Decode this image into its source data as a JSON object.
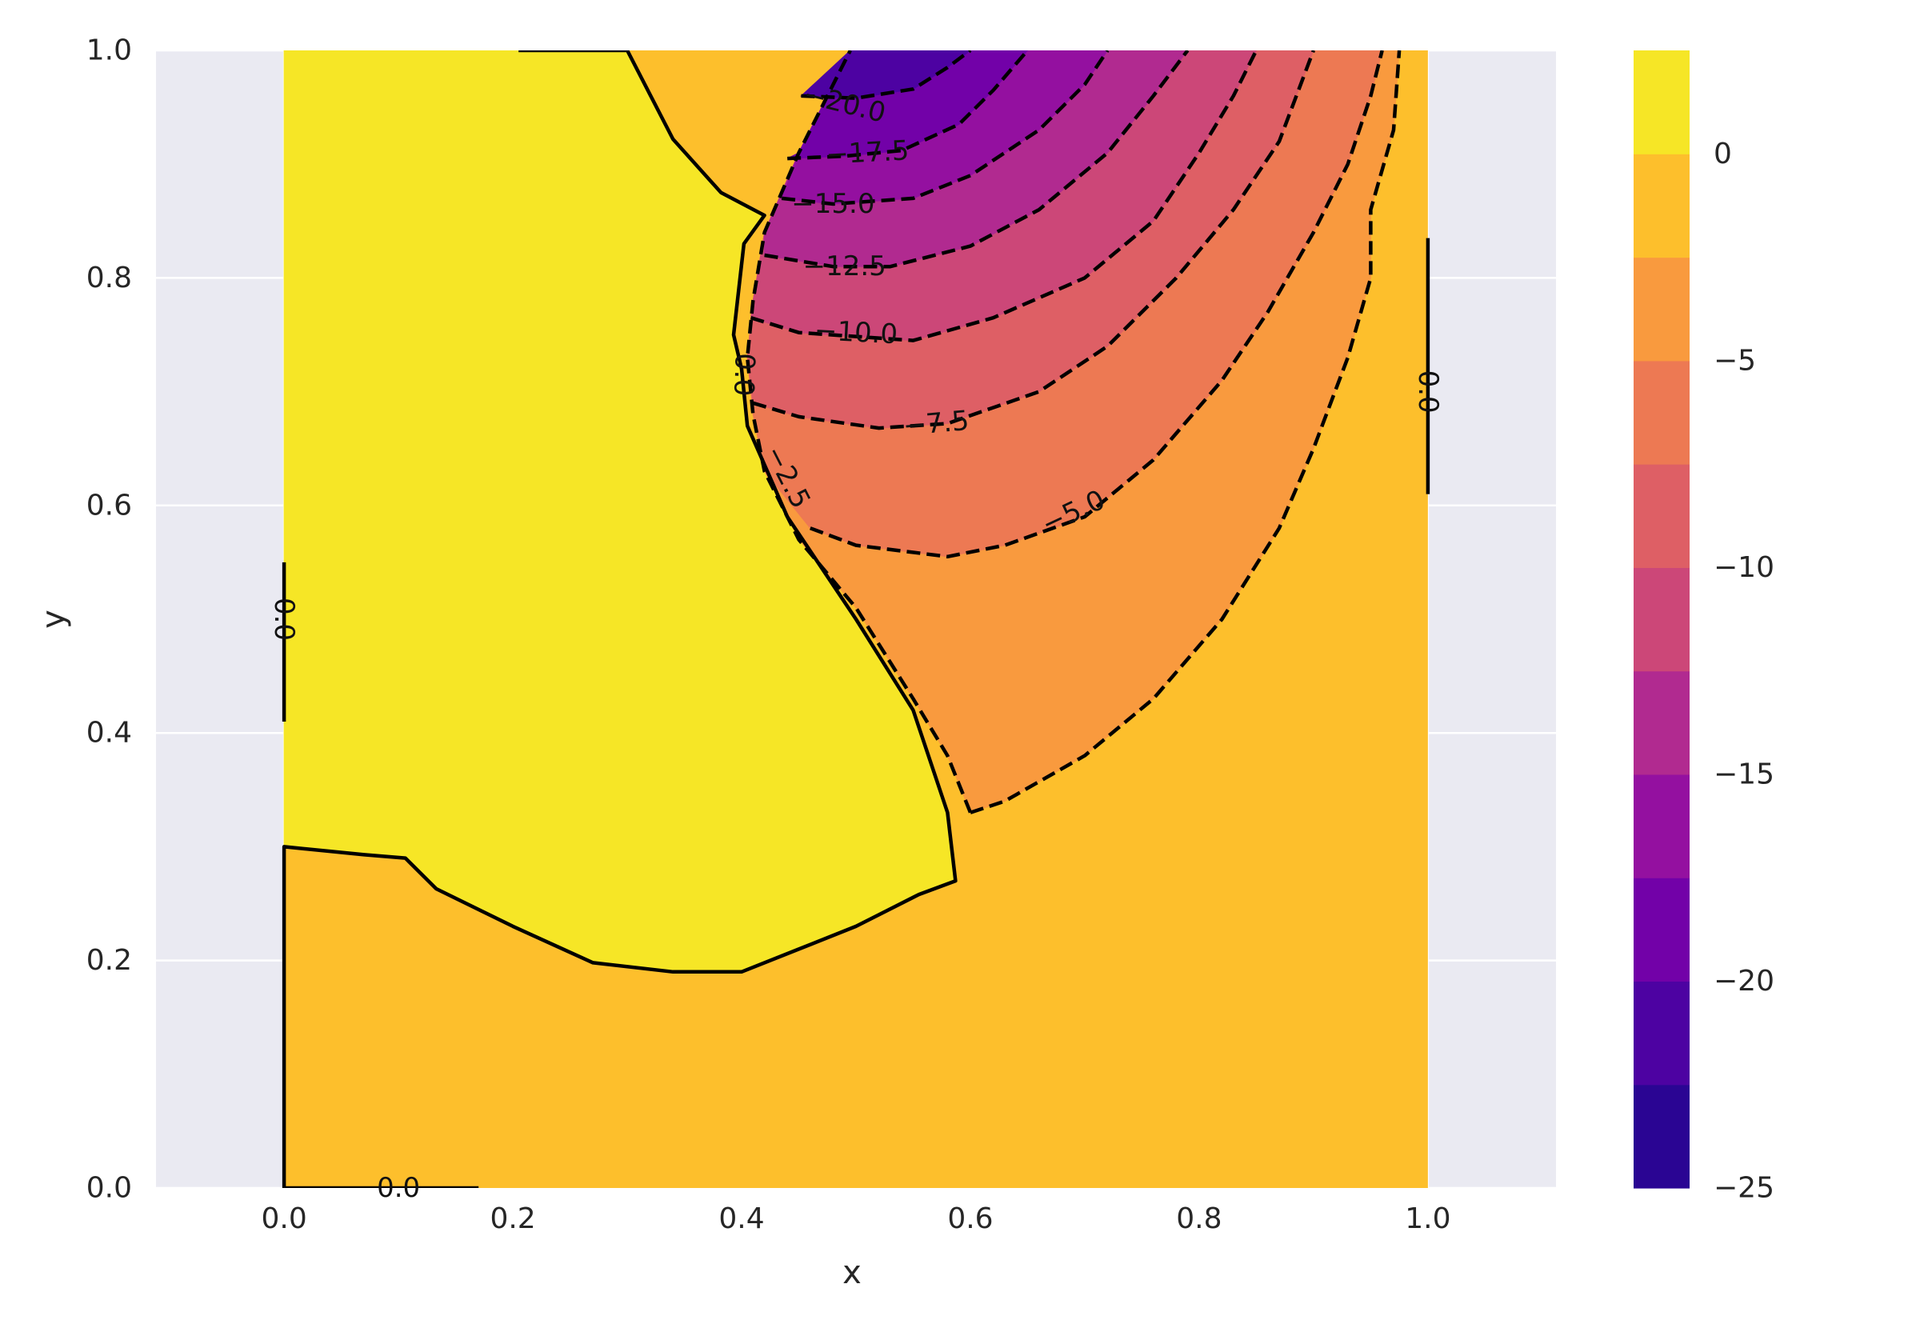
{
  "chart_data": {
    "type": "contour",
    "title": "",
    "xlabel": "x",
    "ylabel": "y",
    "xlim": [
      -0.112,
      1.112
    ],
    "ylim": [
      0.0,
      1.0
    ],
    "grid": true,
    "x_ticks": [
      0.0,
      0.2,
      0.4,
      0.6,
      0.8,
      1.0
    ],
    "x_tick_labels": [
      "0.0",
      "0.2",
      "0.4",
      "0.6",
      "0.8",
      "1.0"
    ],
    "y_ticks": [
      0.0,
      0.2,
      0.4,
      0.6,
      0.8,
      1.0
    ],
    "y_tick_labels": [
      "0.0",
      "0.2",
      "0.4",
      "0.6",
      "0.8",
      "1.0"
    ],
    "colormap": "plasma",
    "filled_levels": [
      -25,
      -22.5,
      -20,
      -17.5,
      -15,
      -12.5,
      -10,
      -7.5,
      -5,
      -2.5,
      0,
      2.5
    ],
    "level_colors": [
      "#2a0593",
      "#4d02a2",
      "#7201a8",
      "#9410a0",
      "#b12a90",
      "#cc4778",
      "#de5f65",
      "#ed7953",
      "#f99a3e",
      "#fdbf2c",
      "#f6e626"
    ],
    "colorbar": {
      "ticks": [
        0,
        -5,
        -10,
        -15,
        -20,
        -25
      ],
      "tick_labels": [
        "0",
        "−5",
        "−10",
        "−15",
        "−20",
        "−25"
      ],
      "range": [
        -25,
        2.5
      ]
    },
    "contour_lines": [
      {
        "level": 0.0,
        "style": "solid",
        "points": [
          [
            0.0,
            0.0
          ],
          [
            0.0,
            0.3
          ],
          [
            0.07,
            0.293
          ],
          [
            0.106,
            0.29
          ],
          [
            0.133,
            0.263
          ],
          [
            0.2,
            0.23
          ],
          [
            0.27,
            0.198
          ],
          [
            0.34,
            0.19
          ],
          [
            0.4,
            0.19
          ],
          [
            0.45,
            0.21
          ],
          [
            0.5,
            0.23
          ],
          [
            0.555,
            0.258
          ],
          [
            0.587,
            0.27
          ],
          [
            0.58,
            0.33
          ],
          [
            0.55,
            0.42
          ],
          [
            0.5,
            0.5
          ],
          [
            0.44,
            0.59
          ],
          [
            0.405,
            0.67
          ],
          [
            0.4,
            0.72
          ],
          [
            0.393,
            0.75
          ],
          [
            0.402,
            0.83
          ],
          [
            0.42,
            0.855
          ],
          [
            0.382,
            0.875
          ],
          [
            0.34,
            0.922
          ],
          [
            0.3,
            1.0
          ]
        ]
      },
      {
        "level": 0.0,
        "style": "solid",
        "points": [
          [
            0.205,
            1.0
          ],
          [
            0.3,
            1.0
          ]
        ]
      },
      {
        "level": 0.0,
        "style": "solid",
        "points": [
          [
            1.0,
            0.61
          ],
          [
            1.0,
            0.835
          ]
        ]
      },
      {
        "level": 0.0,
        "style": "solid",
        "points": [
          [
            0.0,
            0.41
          ],
          [
            0.0,
            0.55
          ]
        ]
      },
      {
        "level": 0.0,
        "style": "solid",
        "points": [
          [
            0.0,
            0.0
          ],
          [
            0.17,
            0.0
          ]
        ]
      },
      {
        "level": -2.5,
        "style": "dashed",
        "points": [
          [
            0.6,
            0.33
          ],
          [
            0.63,
            0.34
          ],
          [
            0.7,
            0.38
          ],
          [
            0.76,
            0.43
          ],
          [
            0.82,
            0.5
          ],
          [
            0.87,
            0.58
          ],
          [
            0.9,
            0.65
          ],
          [
            0.93,
            0.73
          ],
          [
            0.95,
            0.8
          ],
          [
            0.95,
            0.86
          ],
          [
            0.97,
            0.93
          ],
          [
            0.975,
            1.0
          ]
        ]
      },
      {
        "level": -2.5,
        "style": "dashed",
        "points": [
          [
            0.6,
            0.33
          ],
          [
            0.58,
            0.38
          ],
          [
            0.55,
            0.43
          ],
          [
            0.5,
            0.51
          ],
          [
            0.45,
            0.57
          ],
          [
            0.42,
            0.63
          ],
          [
            0.41,
            0.68
          ],
          [
            0.405,
            0.73
          ],
          [
            0.41,
            0.78
          ],
          [
            0.42,
            0.84
          ],
          [
            0.45,
            0.91
          ],
          [
            0.495,
            1.0
          ]
        ]
      },
      {
        "level": -5.0,
        "style": "dashed",
        "points": [
          [
            0.46,
            0.58
          ],
          [
            0.5,
            0.565
          ],
          [
            0.58,
            0.555
          ],
          [
            0.63,
            0.565
          ],
          [
            0.7,
            0.59
          ],
          [
            0.76,
            0.64
          ],
          [
            0.82,
            0.71
          ],
          [
            0.86,
            0.77
          ],
          [
            0.9,
            0.84
          ],
          [
            0.93,
            0.9
          ],
          [
            0.95,
            0.96
          ],
          [
            0.96,
            1.0
          ]
        ]
      },
      {
        "level": -7.5,
        "style": "dashed",
        "points": [
          [
            0.41,
            0.69
          ],
          [
            0.45,
            0.678
          ],
          [
            0.52,
            0.668
          ],
          [
            0.58,
            0.672
          ],
          [
            0.66,
            0.7
          ],
          [
            0.72,
            0.74
          ],
          [
            0.78,
            0.8
          ],
          [
            0.83,
            0.86
          ],
          [
            0.87,
            0.92
          ],
          [
            0.9,
            1.0
          ]
        ]
      },
      {
        "level": -10.0,
        "style": "dashed",
        "points": [
          [
            0.408,
            0.765
          ],
          [
            0.45,
            0.752
          ],
          [
            0.55,
            0.745
          ],
          [
            0.62,
            0.765
          ],
          [
            0.7,
            0.8
          ],
          [
            0.76,
            0.85
          ],
          [
            0.8,
            0.91
          ],
          [
            0.83,
            0.96
          ],
          [
            0.85,
            1.0
          ]
        ]
      },
      {
        "level": -12.5,
        "style": "dashed",
        "points": [
          [
            0.42,
            0.82
          ],
          [
            0.48,
            0.81
          ],
          [
            0.53,
            0.81
          ],
          [
            0.6,
            0.828
          ],
          [
            0.66,
            0.86
          ],
          [
            0.72,
            0.91
          ],
          [
            0.76,
            0.96
          ],
          [
            0.79,
            1.0
          ]
        ]
      },
      {
        "level": -15.0,
        "style": "dashed",
        "points": [
          [
            0.435,
            0.87
          ],
          [
            0.48,
            0.865
          ],
          [
            0.55,
            0.87
          ],
          [
            0.6,
            0.89
          ],
          [
            0.66,
            0.93
          ],
          [
            0.7,
            0.97
          ],
          [
            0.72,
            1.0
          ]
        ]
      },
      {
        "level": -17.5,
        "style": "dashed",
        "points": [
          [
            0.44,
            0.905
          ],
          [
            0.49,
            0.907
          ],
          [
            0.54,
            0.912
          ],
          [
            0.59,
            0.935
          ],
          [
            0.62,
            0.965
          ],
          [
            0.65,
            1.0
          ]
        ]
      },
      {
        "level": -20.0,
        "style": "dashed",
        "points": [
          [
            0.452,
            0.96
          ],
          [
            0.5,
            0.958
          ],
          [
            0.55,
            0.966
          ],
          [
            0.58,
            0.985
          ],
          [
            0.6,
            1.0
          ]
        ]
      }
    ],
    "filled_regions": [
      {
        "level_range": [
          0.0,
          2.5
        ],
        "color": "#f6e626",
        "points": [
          [
            0.0,
            0.3
          ],
          [
            0.07,
            0.293
          ],
          [
            0.106,
            0.29
          ],
          [
            0.133,
            0.263
          ],
          [
            0.2,
            0.23
          ],
          [
            0.27,
            0.198
          ],
          [
            0.34,
            0.19
          ],
          [
            0.4,
            0.19
          ],
          [
            0.45,
            0.21
          ],
          [
            0.5,
            0.23
          ],
          [
            0.555,
            0.258
          ],
          [
            0.587,
            0.27
          ],
          [
            0.58,
            0.33
          ],
          [
            0.55,
            0.42
          ],
          [
            0.5,
            0.5
          ],
          [
            0.44,
            0.59
          ],
          [
            0.405,
            0.67
          ],
          [
            0.4,
            0.72
          ],
          [
            0.393,
            0.75
          ],
          [
            0.402,
            0.83
          ],
          [
            0.42,
            0.855
          ],
          [
            0.382,
            0.875
          ],
          [
            0.34,
            0.922
          ],
          [
            0.3,
            1.0
          ],
          [
            0.0,
            1.0
          ]
        ]
      },
      {
        "level_range": [
          -5.0,
          -2.5
        ],
        "color": "#f99a3e",
        "points": [
          [
            0.6,
            0.33
          ],
          [
            0.63,
            0.34
          ],
          [
            0.7,
            0.38
          ],
          [
            0.76,
            0.43
          ],
          [
            0.82,
            0.5
          ],
          [
            0.87,
            0.58
          ],
          [
            0.9,
            0.65
          ],
          [
            0.93,
            0.73
          ],
          [
            0.95,
            0.8
          ],
          [
            0.95,
            0.86
          ],
          [
            0.97,
            0.93
          ],
          [
            0.975,
            1.0
          ],
          [
            0.495,
            1.0
          ],
          [
            0.45,
            0.91
          ],
          [
            0.42,
            0.84
          ],
          [
            0.41,
            0.78
          ],
          [
            0.405,
            0.73
          ],
          [
            0.41,
            0.68
          ],
          [
            0.42,
            0.63
          ],
          [
            0.45,
            0.57
          ],
          [
            0.5,
            0.51
          ],
          [
            0.55,
            0.43
          ],
          [
            0.58,
            0.38
          ]
        ]
      },
      {
        "level_range": [
          -7.5,
          -5.0
        ],
        "color": "#ed7953",
        "points": [
          [
            0.46,
            0.58
          ],
          [
            0.5,
            0.565
          ],
          [
            0.58,
            0.555
          ],
          [
            0.63,
            0.565
          ],
          [
            0.7,
            0.59
          ],
          [
            0.76,
            0.64
          ],
          [
            0.82,
            0.71
          ],
          [
            0.86,
            0.77
          ],
          [
            0.9,
            0.84
          ],
          [
            0.93,
            0.9
          ],
          [
            0.95,
            0.96
          ],
          [
            0.96,
            1.0
          ],
          [
            0.495,
            1.0
          ],
          [
            0.45,
            0.91
          ],
          [
            0.42,
            0.84
          ],
          [
            0.41,
            0.78
          ],
          [
            0.405,
            0.73
          ],
          [
            0.41,
            0.68
          ],
          [
            0.42,
            0.63
          ]
        ]
      },
      {
        "level_range": [
          -10.0,
          -7.5
        ],
        "color": "#de5f65",
        "points": [
          [
            0.41,
            0.69
          ],
          [
            0.45,
            0.678
          ],
          [
            0.52,
            0.668
          ],
          [
            0.58,
            0.672
          ],
          [
            0.66,
            0.7
          ],
          [
            0.72,
            0.74
          ],
          [
            0.78,
            0.8
          ],
          [
            0.83,
            0.86
          ],
          [
            0.87,
            0.92
          ],
          [
            0.9,
            1.0
          ],
          [
            0.495,
            1.0
          ],
          [
            0.45,
            0.91
          ],
          [
            0.42,
            0.84
          ],
          [
            0.41,
            0.78
          ],
          [
            0.405,
            0.73
          ]
        ]
      },
      {
        "level_range": [
          -12.5,
          -10.0
        ],
        "color": "#cc4778",
        "points": [
          [
            0.408,
            0.765
          ],
          [
            0.45,
            0.752
          ],
          [
            0.55,
            0.745
          ],
          [
            0.62,
            0.765
          ],
          [
            0.7,
            0.8
          ],
          [
            0.76,
            0.85
          ],
          [
            0.8,
            0.91
          ],
          [
            0.83,
            0.96
          ],
          [
            0.85,
            1.0
          ],
          [
            0.495,
            1.0
          ],
          [
            0.45,
            0.91
          ],
          [
            0.42,
            0.84
          ],
          [
            0.41,
            0.78
          ]
        ]
      },
      {
        "level_range": [
          -15.0,
          -12.5
        ],
        "color": "#b12a90",
        "points": [
          [
            0.42,
            0.82
          ],
          [
            0.48,
            0.81
          ],
          [
            0.53,
            0.81
          ],
          [
            0.6,
            0.828
          ],
          [
            0.66,
            0.86
          ],
          [
            0.72,
            0.91
          ],
          [
            0.76,
            0.96
          ],
          [
            0.79,
            1.0
          ],
          [
            0.495,
            1.0
          ],
          [
            0.45,
            0.91
          ],
          [
            0.42,
            0.84
          ]
        ]
      },
      {
        "level_range": [
          -17.5,
          -15.0
        ],
        "color": "#9410a0",
        "points": [
          [
            0.435,
            0.87
          ],
          [
            0.48,
            0.865
          ],
          [
            0.55,
            0.87
          ],
          [
            0.6,
            0.89
          ],
          [
            0.66,
            0.93
          ],
          [
            0.7,
            0.97
          ],
          [
            0.72,
            1.0
          ],
          [
            0.495,
            1.0
          ],
          [
            0.45,
            0.91
          ]
        ]
      },
      {
        "level_range": [
          -20.0,
          -17.5
        ],
        "color": "#7201a8",
        "points": [
          [
            0.44,
            0.905
          ],
          [
            0.49,
            0.907
          ],
          [
            0.54,
            0.912
          ],
          [
            0.59,
            0.935
          ],
          [
            0.62,
            0.965
          ],
          [
            0.65,
            1.0
          ],
          [
            0.495,
            1.0
          ],
          [
            0.45,
            0.91
          ]
        ]
      },
      {
        "level_range": [
          -22.5,
          -20.0
        ],
        "color": "#4d02a2",
        "points": [
          [
            0.452,
            0.96
          ],
          [
            0.5,
            0.958
          ],
          [
            0.55,
            0.966
          ],
          [
            0.58,
            0.985
          ],
          [
            0.6,
            1.0
          ],
          [
            0.495,
            1.0
          ]
        ]
      }
    ],
    "contour_labels": [
      {
        "text": "0.0",
        "x": 0.1,
        "y": 0.0,
        "rotation": 0
      },
      {
        "text": "0.0",
        "x": 0.0,
        "y": 0.5,
        "rotation": 90
      },
      {
        "text": "0.0",
        "x": 1.0,
        "y": 0.7,
        "rotation": 90
      },
      {
        "text": "0.0",
        "x": 0.402,
        "y": 0.715,
        "rotation": 92
      },
      {
        "text": "−2.5",
        "x": 0.44,
        "y": 0.625,
        "rotation": 63
      },
      {
        "text": "−5.0",
        "x": 0.69,
        "y": 0.594,
        "rotation": -25
      },
      {
        "text": "−7.5",
        "x": 0.57,
        "y": 0.672,
        "rotation": -5
      },
      {
        "text": "−10.0",
        "x": 0.5,
        "y": 0.752,
        "rotation": 3
      },
      {
        "text": "−12.5",
        "x": 0.49,
        "y": 0.81,
        "rotation": 0
      },
      {
        "text": "−15.0",
        "x": 0.48,
        "y": 0.865,
        "rotation": 0
      },
      {
        "text": "−17.5",
        "x": 0.51,
        "y": 0.91,
        "rotation": -3
      },
      {
        "text": "−20.0",
        "x": 0.49,
        "y": 0.953,
        "rotation": 14
      }
    ]
  }
}
